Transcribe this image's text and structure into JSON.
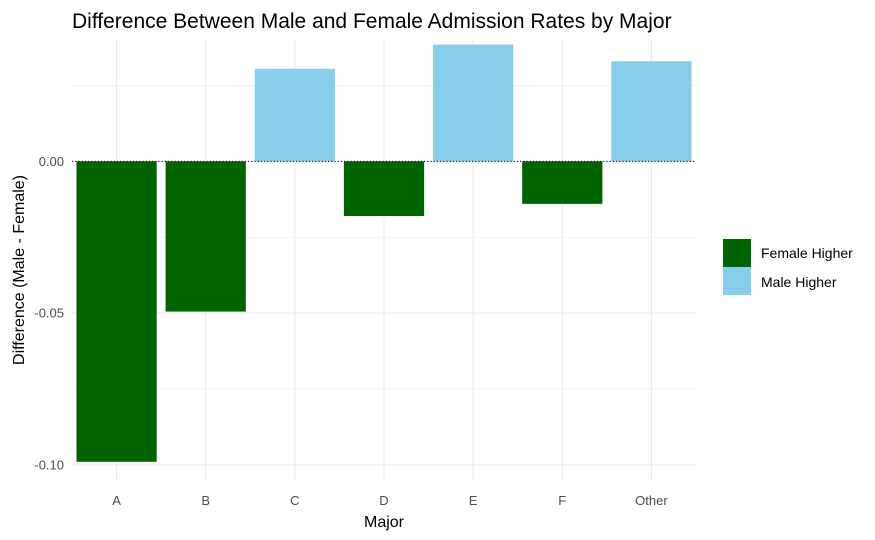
{
  "chart_data": {
    "type": "bar",
    "title": "Difference Between Male and Female Admission Rates by Major",
    "xlabel": "Major",
    "ylabel": "Difference (Male - Female)",
    "categories": [
      "A",
      "B",
      "C",
      "D",
      "E",
      "F",
      "Other"
    ],
    "values": [
      -0.099,
      -0.0495,
      0.0305,
      -0.018,
      0.0385,
      -0.014,
      0.033
    ],
    "ylim": [
      -0.105,
      0.04
    ],
    "yticks": [
      {
        "value": 0.0,
        "label": "0.00"
      },
      {
        "value": -0.05,
        "label": "-0.05"
      },
      {
        "value": -0.1,
        "label": "-0.10"
      }
    ],
    "reference_line": {
      "value": 0,
      "style": "dotted"
    },
    "grid": true,
    "legend": {
      "position": "right",
      "entries": [
        {
          "label": "Female Higher",
          "color": "#006400"
        },
        {
          "label": "Male Higher",
          "color": "#87CEEB"
        }
      ]
    },
    "colors": {
      "negative": "#006400",
      "positive": "#87CEEB",
      "grid": "#ebebeb"
    }
  }
}
